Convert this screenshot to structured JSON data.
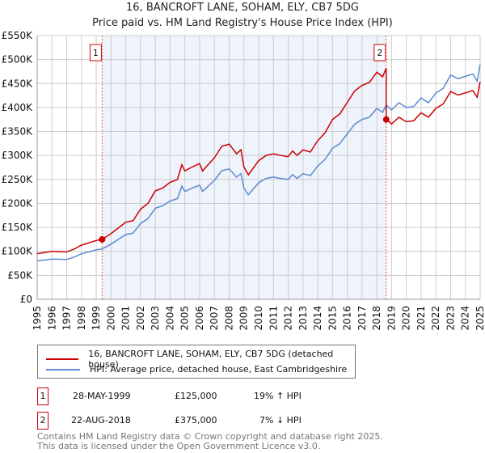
{
  "chart_data": {
    "type": "line",
    "title": "16, BANCROFT LANE, SOHAM, ELY, CB7 5DG",
    "subtitle": "Price paid vs. HM Land Registry's House Price Index (HPI)",
    "xlim": [
      1995,
      2025
    ],
    "ylim": [
      0,
      550000
    ],
    "yticks": [
      {
        "v": 0,
        "label": "£0"
      },
      {
        "v": 50000,
        "label": "£50K"
      },
      {
        "v": 100000,
        "label": "£100K"
      },
      {
        "v": 150000,
        "label": "£150K"
      },
      {
        "v": 200000,
        "label": "£200K"
      },
      {
        "v": 250000,
        "label": "£250K"
      },
      {
        "v": 300000,
        "label": "£300K"
      },
      {
        "v": 350000,
        "label": "£350K"
      },
      {
        "v": 400000,
        "label": "£400K"
      },
      {
        "v": 450000,
        "label": "£450K"
      },
      {
        "v": 500000,
        "label": "£500K"
      },
      {
        "v": 550000,
        "label": "£550K"
      }
    ],
    "xticks": [
      "1995",
      "1996",
      "1997",
      "1998",
      "1999",
      "2000",
      "2001",
      "2002",
      "2003",
      "2004",
      "2005",
      "2006",
      "2007",
      "2008",
      "2009",
      "2010",
      "2011",
      "2012",
      "2013",
      "2014",
      "2015",
      "2016",
      "2017",
      "2018",
      "2019",
      "2020",
      "2021",
      "2022",
      "2023",
      "2024",
      "2025"
    ],
    "grid": true,
    "shaded_range": [
      1999.4,
      2018.64
    ],
    "series": [
      {
        "name": "16, BANCROFT LANE, SOHAM, ELY, CB7 5DG (detached house)",
        "color": "#cc0000",
        "x": [
          1995,
          1996,
          1997,
          1997.5,
          1998,
          1999,
          1999.4,
          2000,
          2001,
          2001.5,
          2002,
          2002.5,
          2003,
          2003.5,
          2004,
          2004.5,
          2004.8,
          2005,
          2005.5,
          2006,
          2006.2,
          2007,
          2007.5,
          2008,
          2008.5,
          2008.8,
          2009,
          2009.3,
          2010,
          2010.5,
          2011,
          2011.5,
          2012,
          2012.3,
          2012.6,
          2013,
          2013.5,
          2014,
          2014.5,
          2015,
          2015.5,
          2016,
          2016.5,
          2017,
          2017.5,
          2018,
          2018.4,
          2018.64,
          2018.64,
          2019,
          2019.5,
          2020,
          2020.5,
          2021,
          2021.5,
          2022,
          2022.5,
          2023,
          2023.5,
          2024,
          2024.5,
          2024.8,
          2025
        ],
        "values": [
          95200,
          100000,
          98800,
          104700,
          113000,
          122600,
          125000,
          136900,
          160700,
          164200,
          188000,
          199900,
          226100,
          232000,
          244000,
          249900,
          280800,
          267800,
          276000,
          283200,
          267800,
          295100,
          318900,
          323700,
          303500,
          311800,
          276100,
          259400,
          289200,
          299900,
          303500,
          299900,
          297500,
          309400,
          299900,
          311800,
          307000,
          330800,
          347500,
          374900,
          386800,
          410600,
          434400,
          446300,
          452200,
          473600,
          464100,
          482000,
          375000,
          365800,
          379700,
          370400,
          372300,
          388900,
          379700,
          398200,
          407400,
          433400,
          426000,
          430600,
          435200,
          421300,
          453700
        ]
      },
      {
        "name": "HPI: Average price, detached house, East Cambridgeshire",
        "color": "#5b8bd0",
        "x": [
          1995,
          1996,
          1997,
          1997.5,
          1998,
          1999,
          1999.4,
          2000,
          2001,
          2001.5,
          2002,
          2002.5,
          2003,
          2003.5,
          2004,
          2004.5,
          2004.8,
          2005,
          2005.5,
          2006,
          2006.2,
          2007,
          2007.5,
          2008,
          2008.5,
          2008.8,
          2009,
          2009.3,
          2010,
          2010.5,
          2011,
          2011.5,
          2012,
          2012.3,
          2012.6,
          2013,
          2013.5,
          2014,
          2014.5,
          2015,
          2015.5,
          2016,
          2016.5,
          2017,
          2017.5,
          2018,
          2018.4,
          2018.64,
          2019,
          2019.5,
          2020,
          2020.5,
          2021,
          2021.5,
          2022,
          2022.5,
          2023,
          2023.5,
          2024,
          2024.5,
          2024.8,
          2025
        ],
        "values": [
          80000,
          84000,
          83000,
          88000,
          95000,
          103000,
          105000,
          115000,
          135000,
          138000,
          158000,
          168000,
          190000,
          195000,
          205000,
          210000,
          236000,
          225000,
          232000,
          238000,
          225000,
          248000,
          268000,
          272000,
          255000,
          262000,
          232000,
          218000,
          243000,
          252000,
          255000,
          252000,
          250000,
          260000,
          252000,
          262000,
          258000,
          278000,
          292000,
          315000,
          325000,
          345000,
          365000,
          375000,
          380000,
          398000,
          390000,
          405000,
          395000,
          410000,
          400000,
          402000,
          420000,
          410000,
          430000,
          440000,
          468000,
          460000,
          465000,
          470000,
          455000,
          490000
        ]
      }
    ],
    "sales": [
      {
        "label": "1",
        "x": 1999.4,
        "value": 125000
      },
      {
        "label": "2",
        "x": 2018.64,
        "value": 375000
      }
    ]
  },
  "legend": {
    "property": "16, BANCROFT LANE, SOHAM, ELY, CB7 5DG (detached house)",
    "hpi": "HPI: Average price, detached house, East Cambridgeshire"
  },
  "transactions": [
    {
      "num": "1",
      "date": "28-MAY-1999",
      "price": "£125,000",
      "delta": "19% ↑ HPI"
    },
    {
      "num": "2",
      "date": "22-AUG-2018",
      "price": "£375,000",
      "delta": "7% ↓ HPI"
    }
  ],
  "footer": [
    "Contains HM Land Registry data © Crown copyright and database right 2025.",
    "This data is licensed under the Open Government Licence v3.0."
  ]
}
